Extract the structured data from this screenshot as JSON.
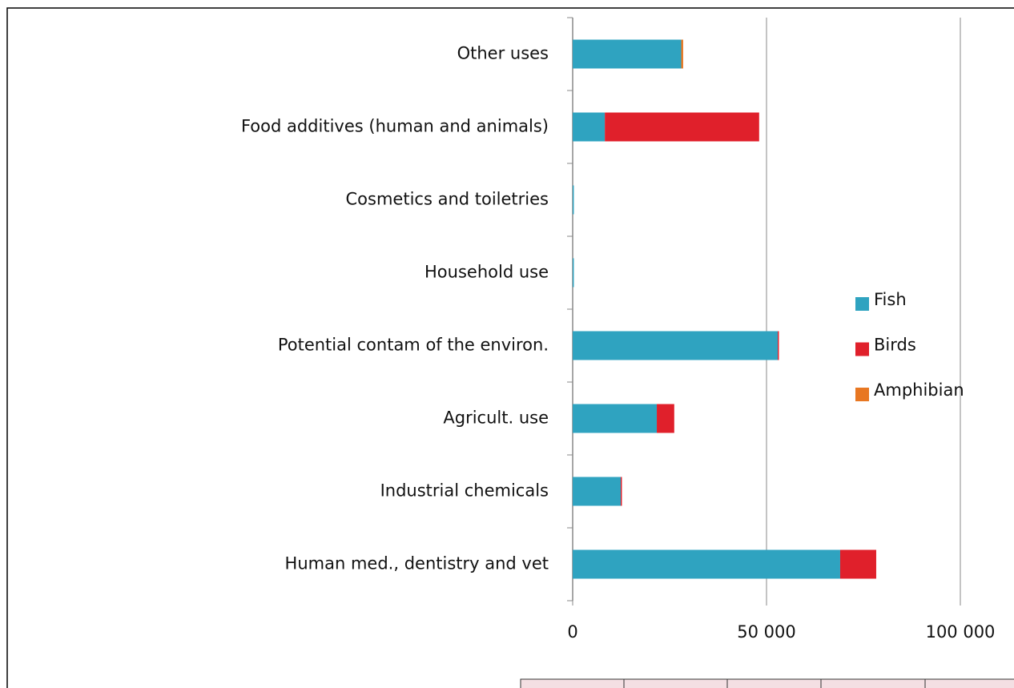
{
  "chart_data": {
    "type": "stacked-bar-horizontal",
    "categories": [
      "Other uses",
      "Food additives (human and animals)",
      "Cosmetics and toiletries",
      "Household use",
      "Potential contam of the environ.",
      "Agricult. use",
      "Industrial chemicals",
      "Human med., dentistry and vet"
    ],
    "series": [
      {
        "name": "Fish",
        "color": "#2fa3c0",
        "values": [
          28000,
          8300,
          300,
          300,
          52900,
          21700,
          12400,
          69000
        ]
      },
      {
        "name": "Birds",
        "color": "#e0202b",
        "values": [
          0,
          39800,
          0,
          0,
          300,
          4500,
          300,
          9300
        ]
      },
      {
        "name": "Amphibian",
        "color": "#e87722",
        "values": [
          500,
          0,
          0,
          0,
          0,
          0,
          0,
          0
        ]
      }
    ],
    "xlim": [
      0,
      100000
    ],
    "xticks": [
      0,
      {
        "value": 50000,
        "label": "50 000"
      },
      {
        "value": 100000,
        "label": "100 000"
      }
    ],
    "grid": true
  }
}
